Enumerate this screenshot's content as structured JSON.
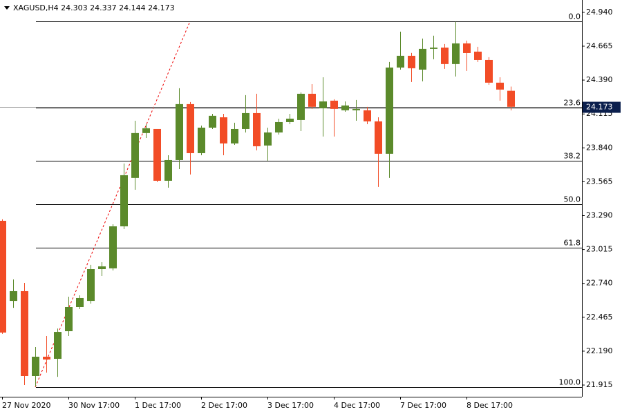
{
  "chart_data": {
    "type": "candlestick",
    "title": "XAGUSD,H4",
    "x": [
      "27 Nov 2020",
      null,
      null,
      null,
      null,
      null,
      "30 Nov 17:00",
      null,
      null,
      null,
      null,
      null,
      "1 Dec 17:00",
      null,
      null,
      null,
      null,
      null,
      "2 Dec 17:00",
      null,
      null,
      null,
      null,
      null,
      "3 Dec 17:00",
      null,
      null,
      null,
      null,
      null,
      "4 Dec 17:00",
      null,
      null,
      null,
      null,
      null,
      "7 Dec 17:00",
      null,
      null,
      null,
      null,
      null,
      "8 Dec 17:00",
      null,
      null,
      null,
      null
    ],
    "open": [
      23.248,
      22.598,
      22.677,
      21.988,
      22.145,
      22.128,
      22.352,
      22.548,
      22.598,
      22.856,
      22.862,
      23.203,
      23.596,
      23.96,
      23.993,
      23.573,
      23.741,
      24.195,
      23.797,
      24.004,
      24.088,
      23.876,
      23.993,
      24.122,
      23.859,
      23.965,
      24.049,
      24.066,
      24.279,
      24.161,
      24.223,
      24.145,
      24.145,
      24.145,
      24.055,
      23.792,
      24.492,
      24.587,
      24.475,
      24.643,
      24.654,
      24.52,
      24.688,
      24.621,
      24.553,
      24.369,
      24.303
    ],
    "high": [
      23.26,
      22.772,
      22.744,
      22.223,
      22.313,
      22.374,
      22.632,
      22.643,
      22.89,
      22.912,
      23.22,
      23.713,
      24.06,
      24.032,
      23.993,
      23.78,
      24.324,
      24.212,
      24.021,
      24.116,
      24.116,
      24.044,
      24.268,
      24.279,
      24.004,
      24.077,
      24.116,
      24.29,
      24.357,
      24.413,
      24.234,
      24.217,
      24.229,
      24.173,
      24.088,
      24.537,
      24.783,
      24.61,
      24.727,
      24.75,
      24.682,
      24.862,
      24.71,
      24.66,
      24.576,
      24.413,
      24.337
    ],
    "low": [
      22.33,
      22.542,
      21.915,
      21.904,
      22.016,
      21.982,
      22.313,
      22.531,
      22.576,
      22.8,
      22.845,
      23.181,
      23.5,
      23.92,
      23.562,
      23.517,
      23.668,
      23.624,
      23.78,
      23.993,
      23.78,
      23.864,
      23.965,
      23.82,
      23.736,
      23.948,
      24.032,
      23.976,
      24.156,
      23.932,
      23.932,
      24.133,
      24.06,
      24.032,
      23.523,
      23.596,
      24.475,
      24.374,
      24.38,
      24.559,
      24.481,
      24.419,
      24.464,
      24.537,
      24.352,
      24.223,
      24.144
    ],
    "close": [
      22.341,
      22.677,
      21.988,
      22.145,
      22.122,
      22.346,
      22.548,
      22.621,
      22.856,
      22.878,
      23.203,
      23.618,
      23.96,
      23.999,
      23.573,
      23.741,
      24.195,
      23.797,
      24.004,
      24.1,
      23.876,
      23.993,
      24.122,
      23.853,
      23.965,
      24.049,
      24.077,
      24.279,
      24.173,
      24.217,
      24.156,
      24.184,
      24.156,
      24.055,
      23.792,
      24.492,
      24.587,
      24.486,
      24.643,
      24.654,
      24.52,
      24.688,
      24.609,
      24.553,
      24.369,
      24.313,
      24.173
    ],
    "up_color": "#5b8a2b",
    "down_color": "#f24c26",
    "ylim": [
      21.82,
      25.04
    ],
    "yticks": [
      {
        "value": 24.94,
        "label": "24.940"
      },
      24.665,
      {
        "value": 24.39,
        "label": "24.390"
      },
      24.115,
      {
        "value": 23.84,
        "label": "23.840"
      },
      23.565,
      {
        "value": 23.29,
        "label": "23.290"
      },
      23.015,
      {
        "value": 22.74,
        "label": "22.740"
      },
      22.465,
      {
        "value": 22.19,
        "label": "22.190"
      },
      21.915
    ],
    "fib_levels": [
      {
        "value": 24.867,
        "label": "0.0"
      },
      {
        "value": 24.166,
        "label": "23.6"
      },
      {
        "value": 23.733,
        "label": "38.2"
      },
      {
        "value": 23.383,
        "label": "50.0"
      },
      {
        "value": 23.032,
        "label": "61.8"
      },
      {
        "value": 21.898,
        "label": "100.0"
      }
    ]
  }
}
